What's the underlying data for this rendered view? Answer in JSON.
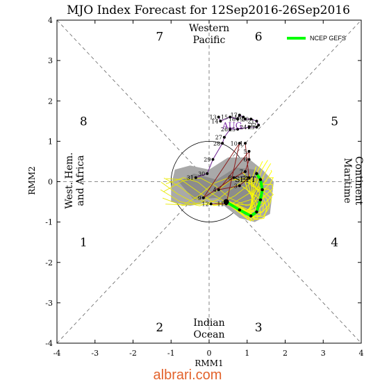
{
  "chart_data": {
    "type": "scatter",
    "title": "MJO Index Forecast for 12Sep2016-26Sep2016",
    "xlabel": "RMM1",
    "ylabel": "RMM2",
    "xlim": [
      -4,
      4
    ],
    "ylim": [
      -4,
      4
    ],
    "x_ticks": [
      "-4",
      "-3",
      "-2",
      "-1",
      "0",
      "1",
      "2",
      "3",
      "4"
    ],
    "y_ticks": [
      "-4",
      "-3",
      "-2",
      "-1",
      "0",
      "1",
      "2",
      "3",
      "4"
    ],
    "phases": [
      "1",
      "2",
      "3",
      "4",
      "5",
      "6",
      "7",
      "8"
    ],
    "regions": {
      "top": [
        "Western",
        "Pacific"
      ],
      "bottom": [
        "Indian",
        "Ocean"
      ],
      "left": [
        "West. Hem.",
        "and Africa"
      ],
      "right": [
        "Maritime",
        "Continent"
      ]
    },
    "month_labels": [
      "AUG",
      "SEPT"
    ],
    "legend": {
      "label": "NCEP GEFS",
      "placement": "top-right",
      "color": "#00ff00"
    },
    "observed": [
      {
        "d": "13",
        "x": 0.25,
        "y": 1.6
      },
      {
        "d": "14",
        "x": 0.3,
        "y": 1.5
      },
      {
        "d": "15",
        "x": 0.55,
        "y": 1.6
      },
      {
        "d": "16",
        "x": 0.75,
        "y": 1.55
      },
      {
        "d": "17",
        "x": 0.8,
        "y": 1.65
      },
      {
        "d": "18",
        "x": 0.9,
        "y": 1.6
      },
      {
        "d": "19",
        "x": 0.95,
        "y": 1.55
      },
      {
        "d": "20",
        "x": 1.1,
        "y": 1.55
      },
      {
        "d": "21",
        "x": 1.25,
        "y": 1.5
      },
      {
        "d": "22",
        "x": 1.3,
        "y": 1.4
      },
      {
        "d": "23",
        "x": 1.25,
        "y": 1.35
      },
      {
        "d": "24",
        "x": 1.05,
        "y": 1.35
      },
      {
        "d": "25",
        "x": 0.75,
        "y": 1.3
      },
      {
        "d": "26",
        "x": 0.55,
        "y": 1.3
      },
      {
        "d": "27",
        "x": 0.4,
        "y": 1.1
      },
      {
        "d": "28",
        "x": 0.35,
        "y": 0.95
      },
      {
        "d": "29",
        "x": 0.1,
        "y": 0.55
      },
      {
        "d": "30",
        "x": -0.05,
        "y": 0.2
      },
      {
        "d": "31",
        "x": -0.35,
        "y": 0.1
      },
      {
        "d": "1",
        "x": 0.95,
        "y": 0.95
      },
      {
        "d": "2",
        "x": 1.05,
        "y": 0.1
      },
      {
        "d": "3",
        "x": 0.8,
        "y": -0.1
      },
      {
        "d": "4",
        "x": 0.25,
        "y": -0.2
      },
      {
        "d": "5",
        "x": 1.05,
        "y": 0.75
      },
      {
        "d": "6",
        "x": 1.05,
        "y": 0.55
      },
      {
        "d": "7",
        "x": 0.95,
        "y": 0.25
      },
      {
        "d": "8",
        "x": 0.65,
        "y": 0.1
      },
      {
        "d": "9",
        "x": -0.15,
        "y": -0.4
      },
      {
        "d": "10",
        "x": 0.8,
        "y": 0.95
      },
      {
        "d": "11",
        "x": 0.45,
        "y": -0.55
      },
      {
        "d": "12",
        "x": 0.05,
        "y": -0.55
      }
    ],
    "forecast_mean": [
      {
        "x": 0.45,
        "y": -0.5
      },
      {
        "x": 0.8,
        "y": -0.7
      },
      {
        "x": 1.1,
        "y": -0.85
      },
      {
        "x": 1.25,
        "y": -0.75
      },
      {
        "x": 1.35,
        "y": -0.45
      },
      {
        "x": 1.4,
        "y": -0.2
      },
      {
        "x": 1.35,
        "y": 0.05
      },
      {
        "x": 1.25,
        "y": 0.2
      }
    ],
    "watermark": "albrari.com"
  }
}
